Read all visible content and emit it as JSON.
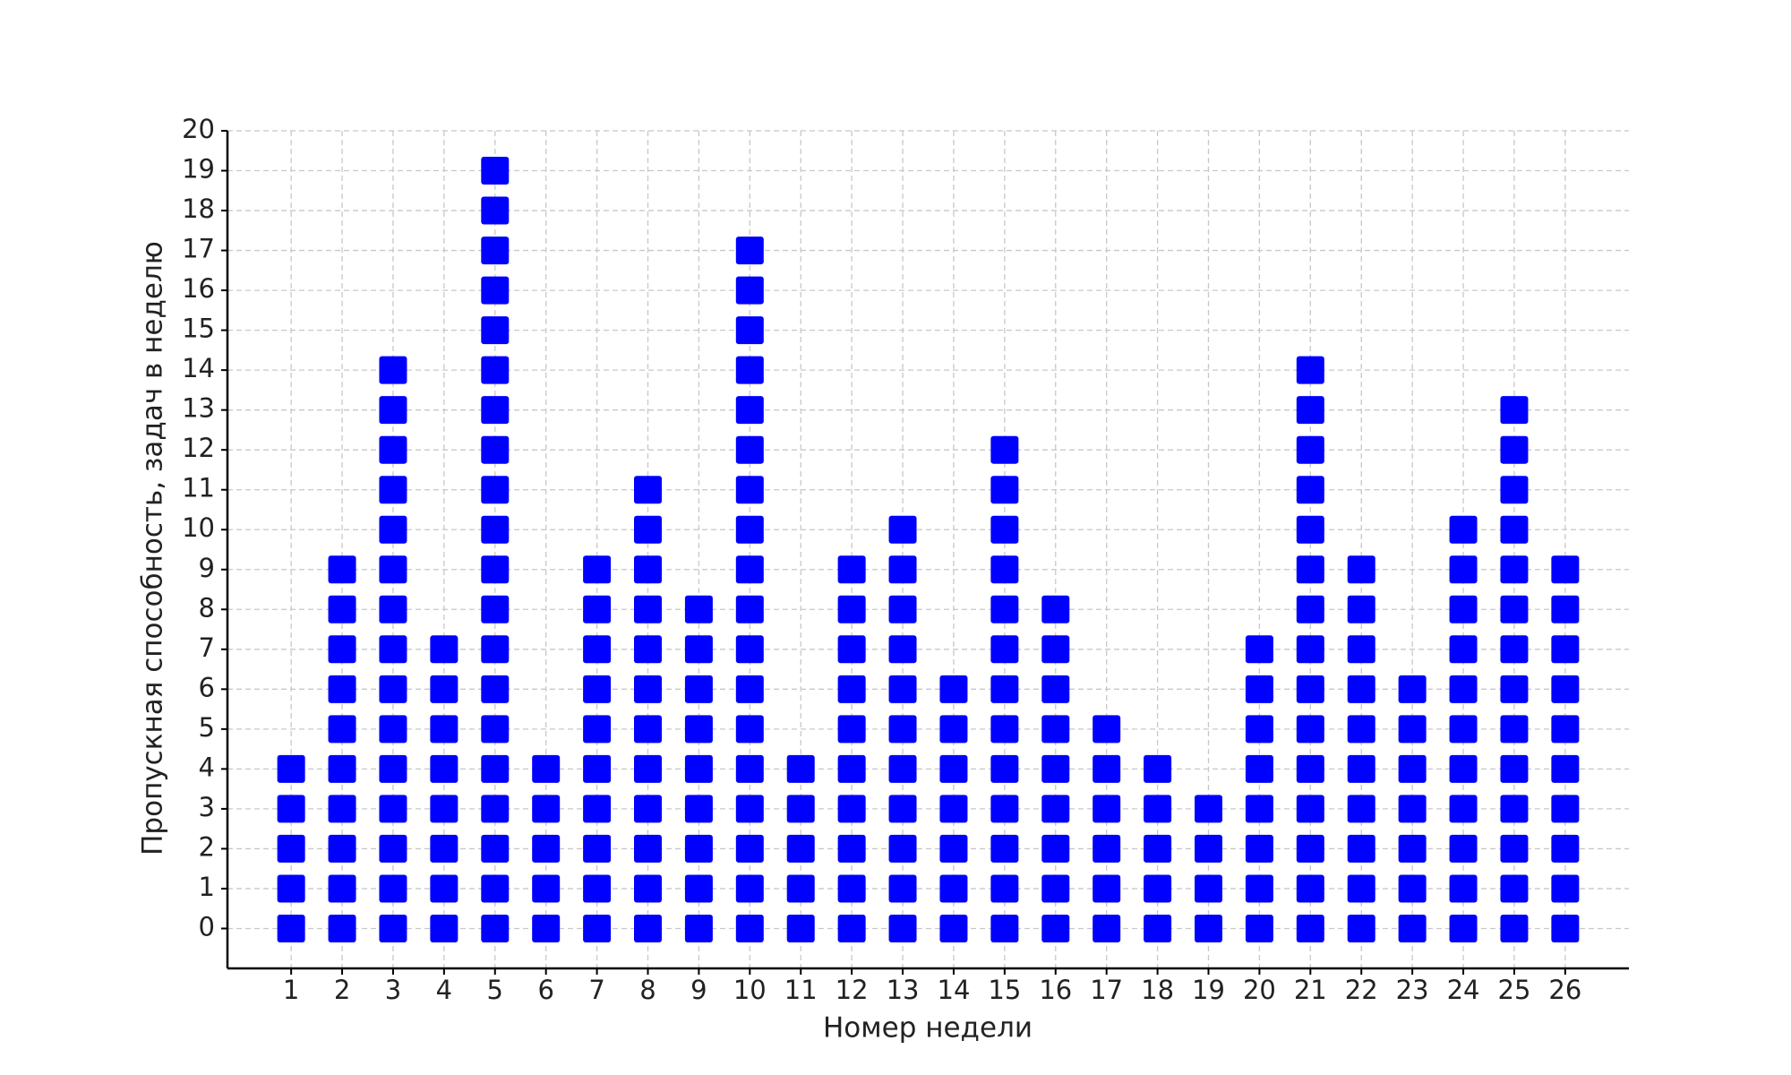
{
  "chart_data": {
    "type": "dotplot",
    "x_label": "Номер недели",
    "y_label": "Пропускная способность, задач в неделю",
    "x": [
      1,
      2,
      3,
      4,
      5,
      6,
      7,
      8,
      9,
      10,
      11,
      12,
      13,
      14,
      15,
      16,
      17,
      18,
      19,
      20,
      21,
      22,
      23,
      24,
      25,
      26
    ],
    "values": [
      4,
      9,
      14,
      7,
      19,
      4,
      9,
      11,
      8,
      17,
      4,
      9,
      10,
      6,
      12,
      8,
      5,
      4,
      3,
      7,
      14,
      9,
      6,
      10,
      13,
      9
    ],
    "color": "#0000ff",
    "xlim": [
      -0.25,
      27.25
    ],
    "ylim": [
      -1,
      20
    ],
    "xticks": [
      1,
      2,
      3,
      4,
      5,
      6,
      7,
      8,
      9,
      10,
      11,
      12,
      13,
      14,
      15,
      16,
      17,
      18,
      19,
      20,
      21,
      22,
      23,
      24,
      25,
      26
    ],
    "yticks": [
      0,
      1,
      2,
      3,
      4,
      5,
      6,
      7,
      8,
      9,
      10,
      11,
      12,
      13,
      14,
      15,
      16,
      17,
      18,
      19,
      20
    ],
    "grid": true
  }
}
